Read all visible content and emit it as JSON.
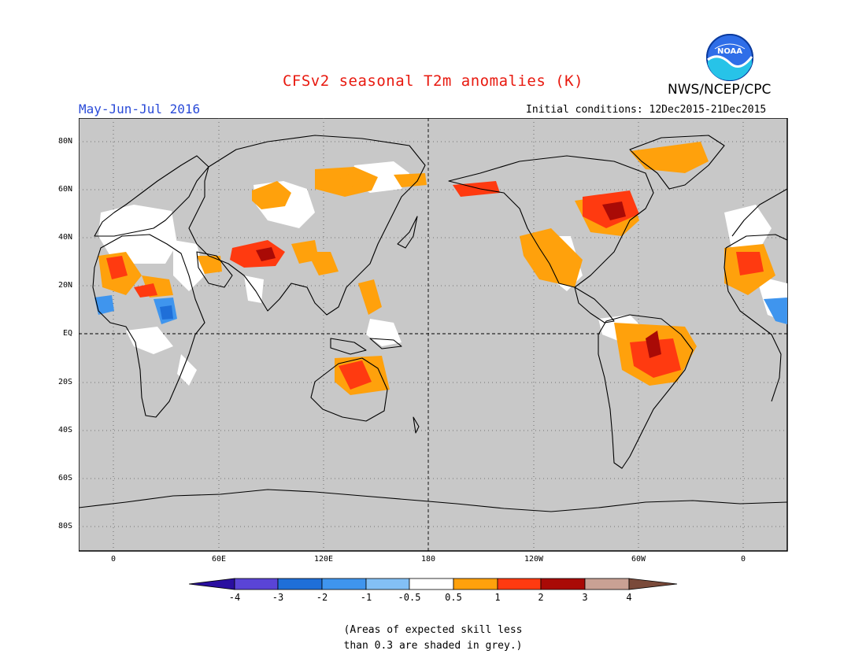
{
  "header": {
    "title": "CFSv2 seasonal T2m anomalies (K)",
    "agency": "NWS/NCEP/CPC",
    "season": "May-Jun-Jul 2016",
    "initial_conditions": "Initial conditions: 12Dec2015-21Dec2015",
    "logo_text": "NOAA"
  },
  "map": {
    "lat_labels": [
      "80N",
      "60N",
      "40N",
      "20N",
      "EQ",
      "20S",
      "40S",
      "60S",
      "80S"
    ],
    "lon_labels": [
      "0",
      "60E",
      "120E",
      "180",
      "120W",
      "60W",
      "0"
    ],
    "background_color": "#c8c8c8",
    "land_outline_color": "#000000"
  },
  "legend": {
    "ticks": [
      "-4",
      "-3",
      "-2",
      "-1",
      "-0.5",
      "0.5",
      "1",
      "2",
      "3",
      "4"
    ],
    "colors": [
      "#2a0fa0",
      "#5a44d6",
      "#1f6fd8",
      "#3f95ee",
      "#83c0f5",
      "#ffffff",
      "#ffa10c",
      "#ff3a10",
      "#a90a06",
      "#c9a194",
      "#7a4a3a"
    ]
  },
  "note": {
    "line1": "(Areas of expected skill less",
    "line2": "than 0.3 are shaded in grey.)"
  }
}
